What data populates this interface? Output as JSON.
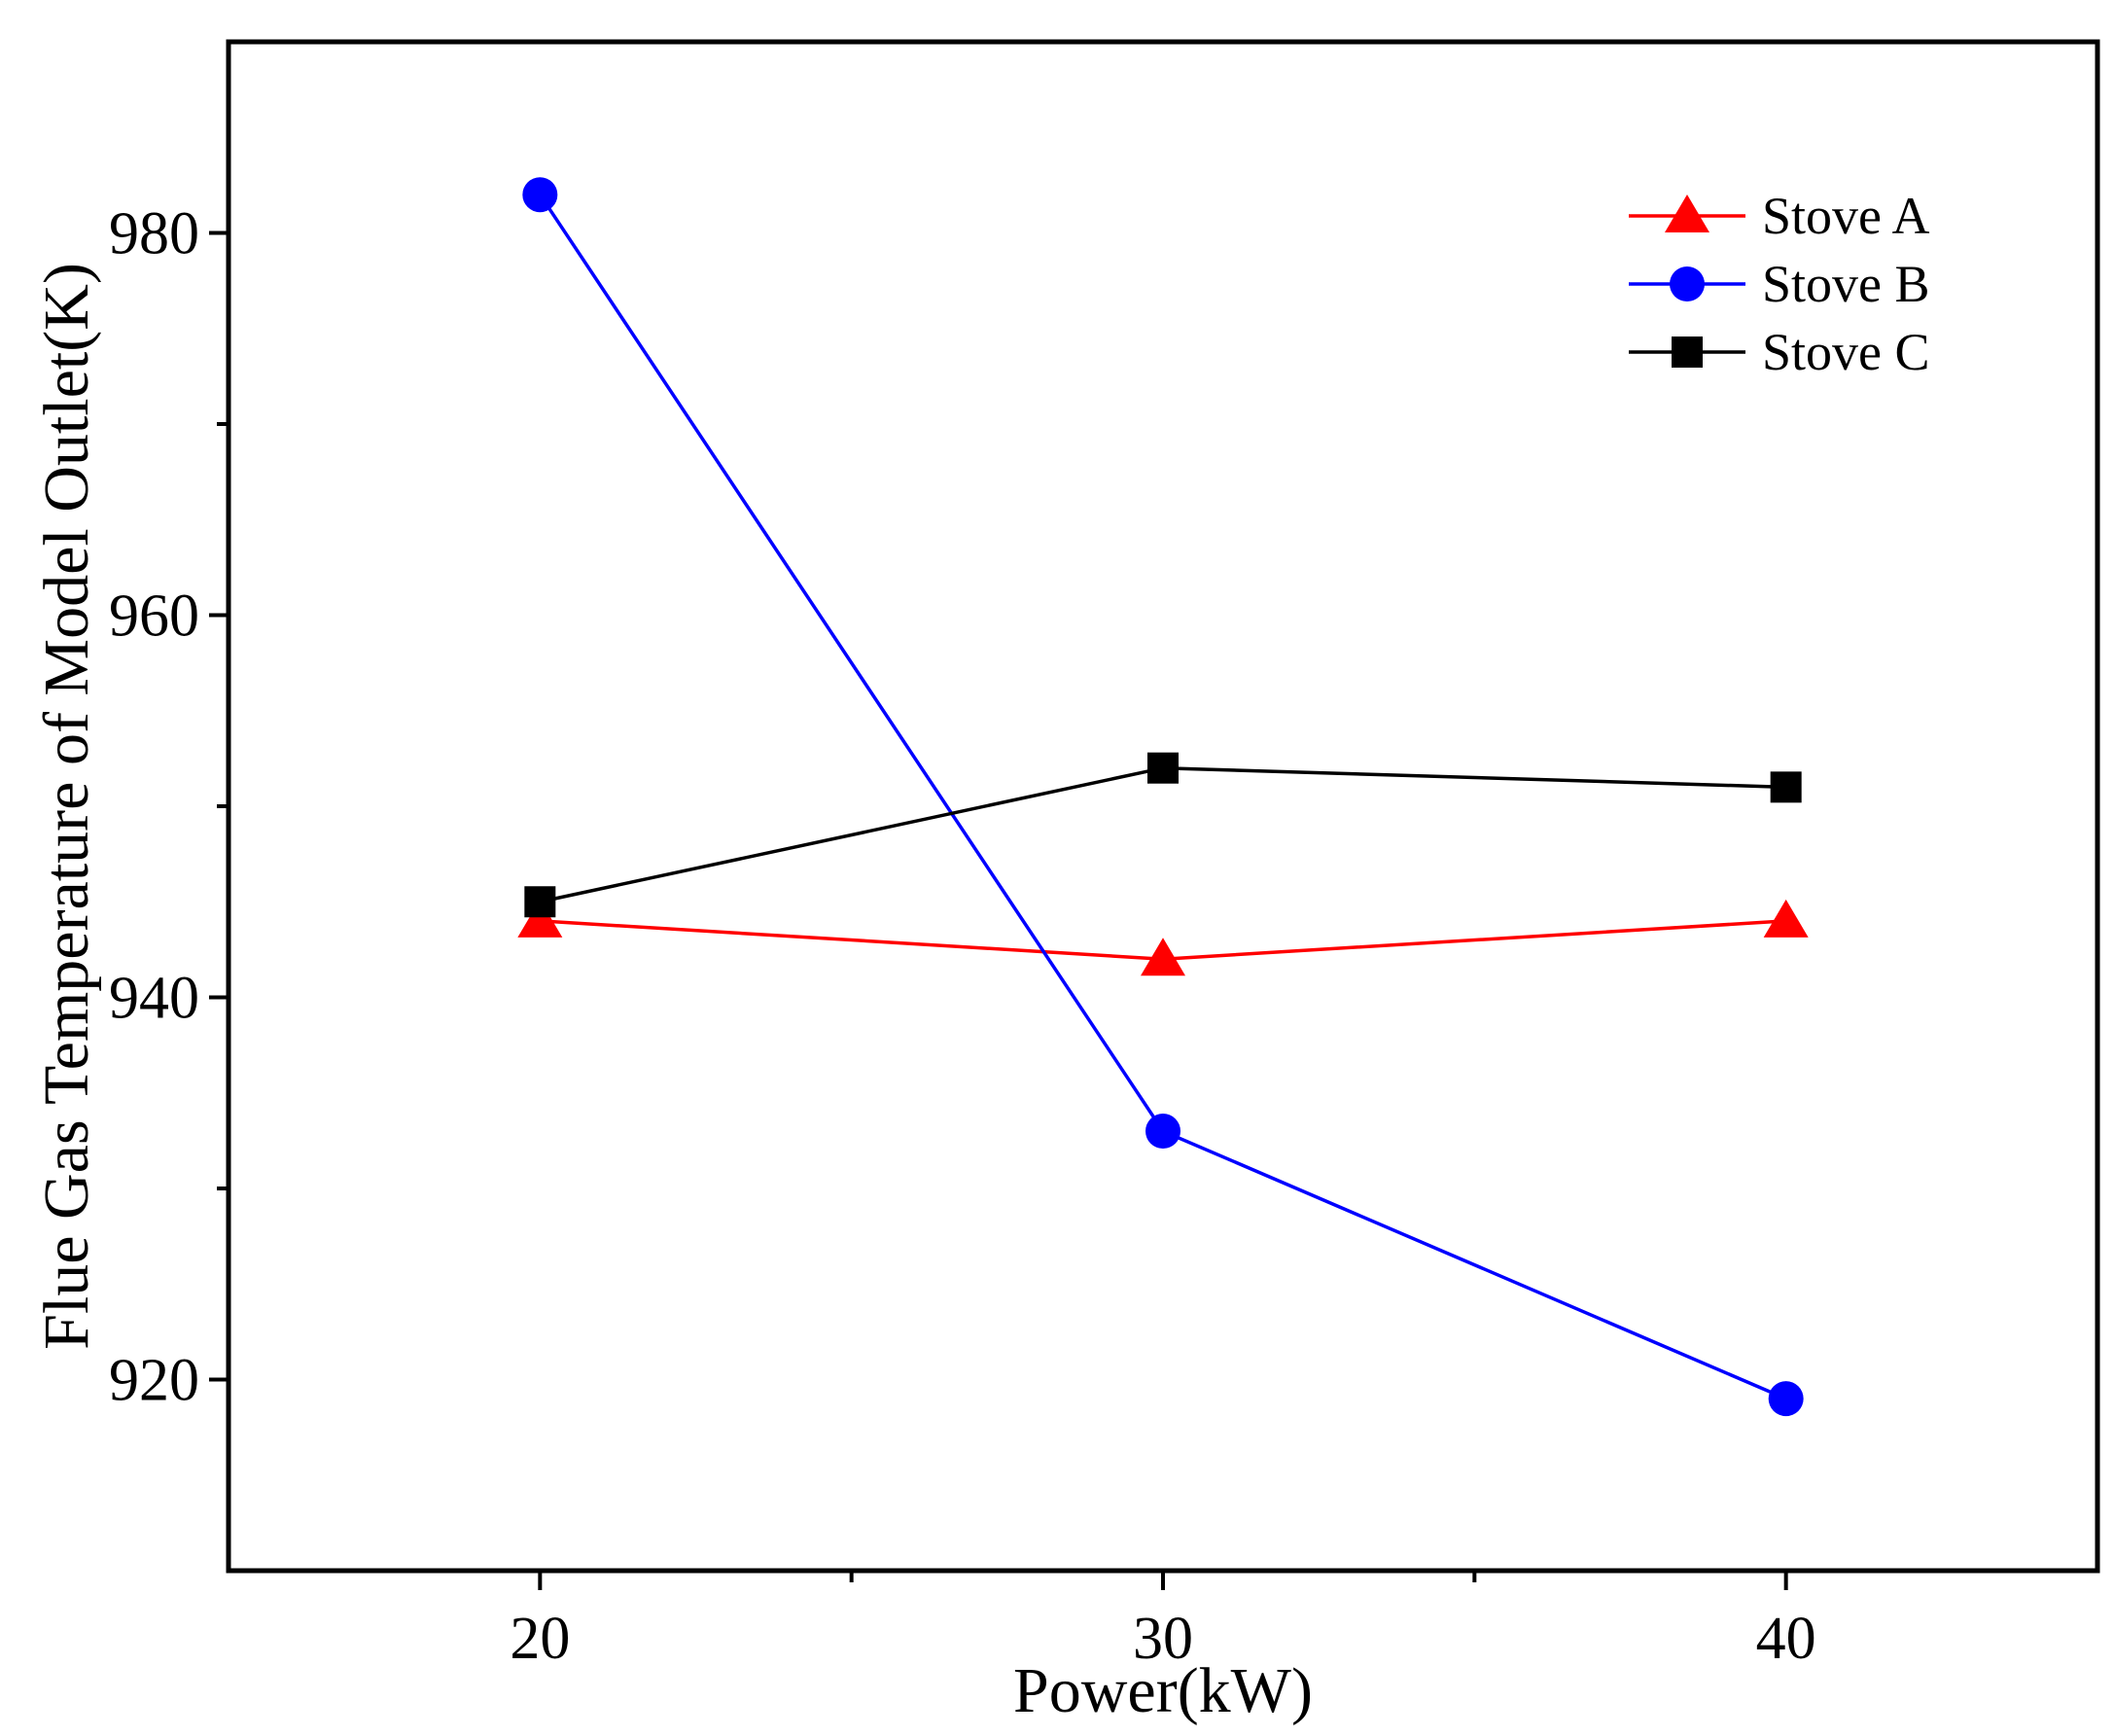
{
  "chart_data": {
    "type": "line",
    "title": "",
    "xlabel": "Power(kW)",
    "ylabel": "Flue Gas Temperature of Model Outlet(K)",
    "x": [
      20,
      30,
      40
    ],
    "xlim": [
      15,
      45
    ],
    "ylim": [
      910,
      990
    ],
    "x_ticks": [
      20,
      30,
      40
    ],
    "x_minor_ticks": [
      25,
      35
    ],
    "y_ticks": [
      920,
      940,
      960,
      980
    ],
    "y_minor_ticks": [
      930,
      950,
      970
    ],
    "grid": false,
    "legend_position": "top-right",
    "series": [
      {
        "name": "Stove A",
        "values": [
          944,
          942,
          944
        ],
        "color": "#ff0000",
        "marker": "triangle"
      },
      {
        "name": "Stove B",
        "values": [
          982,
          933,
          919
        ],
        "color": "#0000ff",
        "marker": "circle"
      },
      {
        "name": "Stove C",
        "values": [
          945,
          952,
          951
        ],
        "color": "#000000",
        "marker": "square"
      }
    ]
  }
}
